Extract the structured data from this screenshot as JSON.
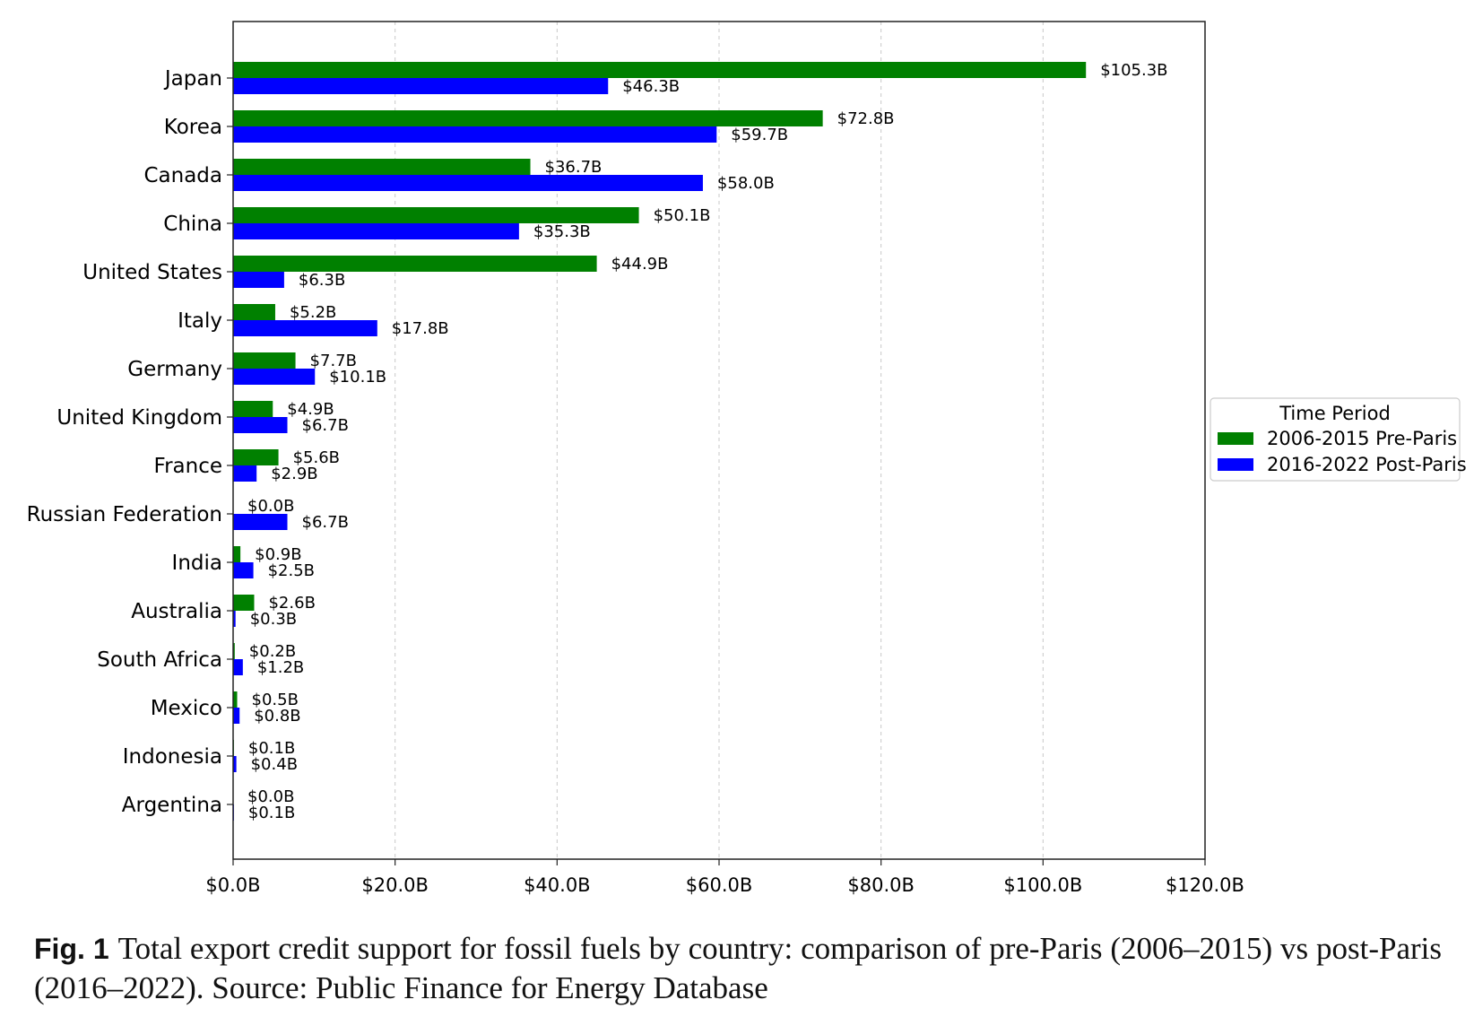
{
  "chart_data": {
    "type": "bar",
    "orientation": "horizontal",
    "title": "",
    "xlabel": "",
    "ylabel": "",
    "xlim": [
      0,
      120
    ],
    "x_ticks": [
      "$0.0B",
      "$20.0B",
      "$40.0B",
      "$60.0B",
      "$80.0B",
      "$100.0B",
      "$120.0B"
    ],
    "x_tick_values": [
      0,
      20,
      40,
      60,
      80,
      100,
      120
    ],
    "grid": "vertical dashed",
    "categories": [
      "Japan",
      "Korea",
      "Canada",
      "China",
      "United States",
      "Italy",
      "Germany",
      "United Kingdom",
      "France",
      "Russian Federation",
      "India",
      "Australia",
      "South Africa",
      "Mexico",
      "Indonesia",
      "Argentina"
    ],
    "series": [
      {
        "name": "2006-2015 Pre-Paris",
        "color": "#008000",
        "values": [
          105.3,
          72.8,
          36.7,
          50.1,
          44.9,
          5.2,
          7.7,
          4.9,
          5.6,
          0.0,
          0.9,
          2.6,
          0.2,
          0.5,
          0.1,
          0.0
        ],
        "labels": [
          "$105.3B",
          "$72.8B",
          "$36.7B",
          "$50.1B",
          "$44.9B",
          "$5.2B",
          "$7.7B",
          "$4.9B",
          "$5.6B",
          "$0.0B",
          "$0.9B",
          "$2.6B",
          "$0.2B",
          "$0.5B",
          "$0.1B",
          "$0.0B"
        ]
      },
      {
        "name": "2016-2022 Post-Paris",
        "color": "#0000ff",
        "values": [
          46.3,
          59.7,
          58.0,
          35.3,
          6.3,
          17.8,
          10.1,
          6.7,
          2.9,
          6.7,
          2.5,
          0.3,
          1.2,
          0.8,
          0.4,
          0.1
        ],
        "labels": [
          "$46.3B",
          "$59.7B",
          "$58.0B",
          "$35.3B",
          "$6.3B",
          "$17.8B",
          "$10.1B",
          "$6.7B",
          "$2.9B",
          "$6.7B",
          "$2.5B",
          "$0.3B",
          "$1.2B",
          "$0.8B",
          "$0.4B",
          "$0.1B"
        ]
      }
    ],
    "legend": {
      "title": "Time Period",
      "placement": "right-center, outside plot"
    }
  },
  "caption": {
    "label": "Fig. 1",
    "text": "Total export credit support for fossil fuels by country: comparison of pre-Paris (2006–2015) vs post-Paris (2016–2022). Source: Public Finance for Energy Database"
  }
}
